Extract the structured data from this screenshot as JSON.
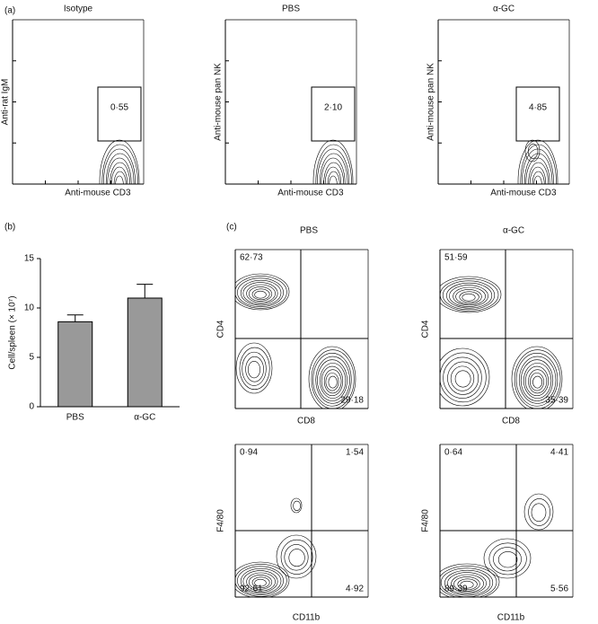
{
  "panel_a": {
    "label": "(a)",
    "plots": [
      {
        "title": "Isotype",
        "y_label": "Anti-rat IgM",
        "x_label": "Anti-mouse CD3",
        "gate": "0·55"
      },
      {
        "title": "PBS",
        "y_label": "Anti-mouse pan NK",
        "x_label": "Anti-mouse CD3",
        "gate": "2·10"
      },
      {
        "title": "α-GC",
        "y_label": "Anti-mouse pan NK",
        "x_label": "Anti-mouse CD3",
        "gate": "4·85"
      }
    ]
  },
  "chart_data": {
    "type": "bar",
    "label": "(b)",
    "y_label": "Cell/spleen (× 10⁷)",
    "categories": [
      "PBS",
      "α-GC"
    ],
    "values": [
      8.6,
      11.0
    ],
    "errors": [
      0.7,
      1.4
    ],
    "color": "#999999",
    "ylim": [
      0,
      15
    ],
    "yticks": [
      0,
      5,
      10,
      15
    ]
  },
  "panel_c": {
    "label": "(c)",
    "plots": [
      {
        "title": "PBS",
        "y_label": "CD4",
        "x_label": "CD8",
        "top_left": "62·73",
        "bottom_right": "29·18"
      },
      {
        "title": "α-GC",
        "y_label": "CD4",
        "x_label": "CD8",
        "top_left": "51·59",
        "bottom_right": "35·39"
      },
      {
        "y_label": "F4/80",
        "x_label": "CD11b",
        "top_left": "0·94",
        "top_right": "1·54",
        "bottom_left": "92·61",
        "bottom_right": "4·92"
      },
      {
        "y_label": "F4/80",
        "x_label": "CD11b",
        "top_left": "0·64",
        "top_right": "4·41",
        "bottom_left": "89·39",
        "bottom_right": "5·56"
      }
    ]
  }
}
